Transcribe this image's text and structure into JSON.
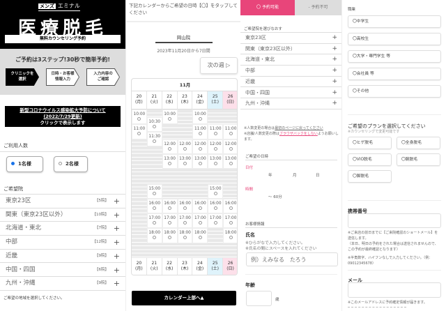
{
  "header": {
    "brand_badge": "メンズ",
    "brand_name": "エミナル",
    "title": "医療脱毛",
    "subtitle": "無料カウンセリング予約"
  },
  "steps": {
    "lead": "ご予約は3ステップ!30秒で簡単予約!",
    "items": [
      {
        "l1": "クリニックを",
        "l2": "選択",
        "active": true
      },
      {
        "l1": "日時・お客様",
        "l2": "情報入力",
        "active": false
      },
      {
        "l1": "入力内容の",
        "l2": "ご確認",
        "active": false
      }
    ]
  },
  "covid": {
    "line1": "新型コロナウイルス感染拡大予防について",
    "line2": "(2022/7/29更新)",
    "line3": "クリックで表示します"
  },
  "people": {
    "label": "ご利用人数",
    "options": [
      {
        "label": "1名様",
        "selected": true
      },
      {
        "label": "2名様",
        "selected": false
      }
    ]
  },
  "clinic": {
    "label": "ご希望院",
    "regions": [
      {
        "name": "東京23区",
        "count": "【5院】"
      },
      {
        "name": "関東（東京23区以外）",
        "count": "【10院】"
      },
      {
        "name": "北海道・東北",
        "count": "【7院】"
      },
      {
        "name": "中部",
        "count": "【12院】"
      },
      {
        "name": "近畿",
        "count": "【9院】"
      },
      {
        "name": "中国・四国",
        "count": "【6院】"
      },
      {
        "name": "九州・沖縄",
        "count": "【9院】"
      }
    ],
    "hint": "ご希望の地域を選択してください。"
  },
  "calendar": {
    "instruction": "下記カレンダーからご希望の日時【〇】をタップしてください",
    "clinic_name": "岡山院",
    "range": "2023年11月20日から7日間",
    "next_week": "次の週 ▷",
    "month": "11月",
    "days": [
      {
        "d": "20",
        "w": "(月)",
        "type": "weekday"
      },
      {
        "d": "21",
        "w": "(火)",
        "type": "weekday"
      },
      {
        "d": "22",
        "w": "(水)",
        "type": "weekday"
      },
      {
        "d": "23",
        "w": "(木)",
        "type": "weekday"
      },
      {
        "d": "24",
        "w": "(金)",
        "type": "weekday"
      },
      {
        "d": "25",
        "w": "(土)",
        "type": "sat"
      },
      {
        "d": "26",
        "w": "(日)",
        "type": "sun"
      }
    ],
    "open_hour": 10,
    "close_hour": 20,
    "mark": "〇",
    "slots": [
      [
        "10:00",
        "11:00"
      ],
      [
        "10:30",
        "11:30",
        "15:00",
        "16:00",
        "17:00",
        "18:00"
      ],
      [
        "10:00",
        "12:00",
        "13:00",
        "16:00",
        "17:00",
        "18:00"
      ],
      [
        "12:00",
        "13:00",
        "16:00",
        "17:00",
        "18:00"
      ],
      [
        "10:00",
        "11:00",
        "12:00",
        "13:00",
        "16:00",
        "17:00",
        "18:00"
      ],
      [
        "11:00",
        "12:00",
        "13:00",
        "15:00",
        "16:00",
        "17:00"
      ],
      [
        "11:00",
        "12:00",
        "13:00",
        "16:00",
        "17:00",
        "18:00"
      ]
    ],
    "to_top": "カレンダー上部へ▲",
    "colors": {
      "sat": "#dff3fb",
      "sun": "#fde0ea"
    }
  },
  "legend": {
    "available": "〇 予約可能",
    "unavailable": "- 予約不可"
  },
  "reselect": {
    "label": "ご希望院を選びなおす",
    "regions": [
      "東京23区",
      "関東（東京23区以外）",
      "北海道・東北",
      "中部",
      "近畿",
      "中国・四国",
      "九州・沖縄"
    ],
    "note1_pre": "※人数変更の場合は",
    "note1_link": "最初のページに戻ってください",
    "note2_pre": "※店舗/人数変更の際は",
    "note2_link": "ブラウザバックをしない",
    "note2_post": "ようお願いします。"
  },
  "datetime": {
    "label": "ご希望の日時",
    "date_label": "日付",
    "year": "年",
    "month": "月",
    "day": "日",
    "time_label": "時間",
    "duration": "～ 60分"
  },
  "customer": {
    "label": "お客様情報",
    "name_label": "氏名",
    "name_note1": "※ひらがなで入力してください。",
    "name_note2": "※氏名の間にスペースを入れてください",
    "name_placeholder": "例）えみなる　たろう",
    "age_label": "年齢",
    "age_unit": "歳"
  },
  "job": {
    "label": "職業",
    "options": [
      "〇中学生",
      "〇高校生",
      "〇大学・専門学生 等",
      "〇会社員 等",
      "〇その他"
    ]
  },
  "plan": {
    "label": "ご希望のプランを選択してください",
    "sub": "※カウンセリングで変更可能です",
    "options": [
      "〇ヒゲ脱毛",
      "〇全身脱毛",
      "〇VIO脱毛",
      "〇腕脱毛",
      "〇脚脱毛"
    ]
  },
  "phone": {
    "label": "携帯番号",
    "note1": "※ご来店の前日までに【ご来院確認のショートメール】を送信します。",
    "note2": "（本日、明日の予約をされた場合は送信されませんので、この予約が最終確認となります）",
    "note3": "※半角数字、ハイフンなしで入力してください。（例：09012345678）"
  },
  "mail": {
    "label": "メール",
    "note": "※このメールアドレスに予約確定情報が届きます。"
  },
  "colors": {
    "accent": "#e8457a",
    "black": "#000000"
  }
}
